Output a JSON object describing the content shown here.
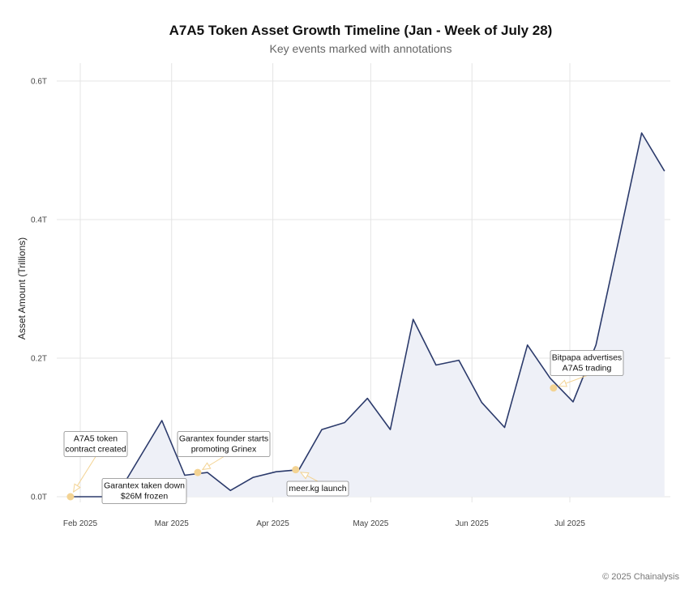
{
  "chart_data": {
    "type": "area",
    "title": "A7A5 Token Asset Growth Timeline (Jan - Week of July 28)",
    "subtitle": "Key events marked with annotations",
    "xlabel": "",
    "ylabel": "Asset Amount (Trillions)",
    "ylim": [
      0,
      0.6
    ],
    "yticks": [
      {
        "value": 0.0,
        "label": "0.0T"
      },
      {
        "value": 0.2,
        "label": "0.2T"
      },
      {
        "value": 0.4,
        "label": "0.4T"
      },
      {
        "value": 0.6,
        "label": "0.6T"
      }
    ],
    "xticks": [
      {
        "date": "2025-02-01",
        "label": "Feb 2025"
      },
      {
        "date": "2025-03-01",
        "label": "Mar 2025"
      },
      {
        "date": "2025-04-01",
        "label": "Apr 2025"
      },
      {
        "date": "2025-05-01",
        "label": "May 2025"
      },
      {
        "date": "2025-06-01",
        "label": "Jun 2025"
      },
      {
        "date": "2025-07-01",
        "label": "Jul 2025"
      }
    ],
    "grid": true,
    "line_color": "#2b3a6b",
    "fill_color": "#eef0f7",
    "marker_color": "#f3d393",
    "series": [
      {
        "x": [
          "2025-01-29",
          "2025-02-05",
          "2025-02-12",
          "2025-02-19",
          "2025-02-26",
          "2025-03-05",
          "2025-03-12",
          "2025-03-19",
          "2025-03-26",
          "2025-04-02",
          "2025-04-09",
          "2025-04-16",
          "2025-04-23",
          "2025-04-30",
          "2025-05-07",
          "2025-05-14",
          "2025-05-21",
          "2025-05-28",
          "2025-06-04",
          "2025-06-11",
          "2025-06-18",
          "2025-06-25",
          "2025-07-02",
          "2025-07-09",
          "2025-07-16",
          "2025-07-23",
          "2025-07-30"
        ],
        "y": [
          0.0,
          0.0,
          0.0,
          0.055,
          0.11,
          0.031,
          0.035,
          0.009,
          0.028,
          0.036,
          0.039,
          0.097,
          0.107,
          0.142,
          0.097,
          0.256,
          0.19,
          0.197,
          0.136,
          0.1,
          0.219,
          0.171,
          0.137,
          0.219,
          0.371,
          0.525,
          0.47
        ]
      }
    ],
    "annotations": [
      {
        "label_lines": [
          "A7A5 token",
          "contract created"
        ],
        "point": {
          "x": "2025-01-29",
          "y": 0.0
        }
      },
      {
        "label_lines": [
          "Garantex taken down",
          "$26M frozen"
        ],
        "point": {
          "x": "2025-02-12",
          "y": 0.0
        }
      },
      {
        "label_lines": [
          "Garantex founder starts",
          "promoting Grinex"
        ],
        "point": {
          "x": "2025-03-09",
          "y": 0.035
        }
      },
      {
        "label_lines": [
          "meer.kg launch"
        ],
        "point": {
          "x": "2025-04-08",
          "y": 0.039
        }
      },
      {
        "label_lines": [
          "Bitpapa advertises",
          "A7A5 trading"
        ],
        "point": {
          "x": "2025-06-26",
          "y": 0.157
        }
      }
    ]
  },
  "footer": {
    "copyright": "© 2025 Chainalysis"
  }
}
